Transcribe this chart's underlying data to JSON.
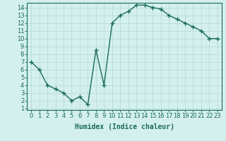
{
  "x": [
    0,
    1,
    2,
    3,
    4,
    5,
    6,
    7,
    8,
    9,
    10,
    11,
    12,
    13,
    14,
    15,
    16,
    17,
    18,
    19,
    20,
    21,
    22,
    23
  ],
  "y": [
    7.0,
    6.0,
    4.0,
    3.5,
    3.0,
    2.0,
    2.5,
    1.5,
    8.5,
    4.0,
    12.0,
    13.0,
    13.5,
    14.3,
    14.3,
    14.0,
    13.8,
    13.0,
    12.5,
    12.0,
    11.5,
    11.0,
    10.0,
    10.0
  ],
  "line_color": "#1a6b5a",
  "marker": "+",
  "marker_size": 4,
  "marker_color": "#1a6b5a",
  "bg_color": "#d4f0ee",
  "grid_color": "#b8dbd8",
  "xlabel": "Humidex (Indice chaleur)",
  "xlim": [
    -0.5,
    23.5
  ],
  "ylim": [
    0.8,
    14.6
  ],
  "xticks": [
    0,
    1,
    2,
    3,
    4,
    5,
    6,
    7,
    8,
    9,
    10,
    11,
    12,
    13,
    14,
    15,
    16,
    17,
    18,
    19,
    20,
    21,
    22,
    23
  ],
  "yticks": [
    1,
    2,
    3,
    4,
    5,
    6,
    7,
    8,
    9,
    10,
    11,
    12,
    13,
    14
  ],
  "xlabel_fontsize": 7,
  "tick_fontsize": 6,
  "linewidth": 1.0
}
